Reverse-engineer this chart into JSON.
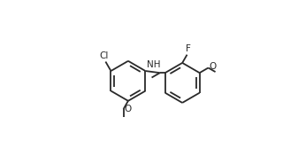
{
  "bg_color": "#ffffff",
  "lc": "#2a2a2a",
  "lw": 1.3,
  "fs": 7.5,
  "fig_w": 3.37,
  "fig_h": 1.85,
  "dpi": 100,
  "lring": [
    0.305,
    0.515
  ],
  "rring": [
    0.735,
    0.5
  ],
  "lr": 0.158,
  "rr": 0.158
}
